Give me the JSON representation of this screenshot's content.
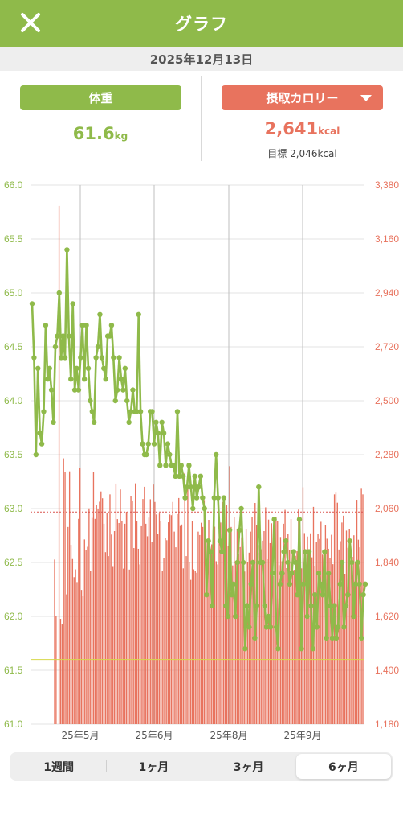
{
  "header": {
    "title": "グラフ",
    "close_icon": "close-icon"
  },
  "date": "2025年12月13日",
  "weight_panel": {
    "button_label": "体重",
    "value": "61.6",
    "unit": "kg",
    "color": "#8fba4a"
  },
  "calorie_panel": {
    "button_label": "摂取カロリー",
    "value": "2,641",
    "unit": "kcal",
    "target": "目標 2,046kcal",
    "color": "#e8735e"
  },
  "period_tabs": [
    {
      "label": "1週間",
      "active": false
    },
    {
      "label": "1ヶ月",
      "active": false
    },
    {
      "label": "3ヶ月",
      "active": false
    },
    {
      "label": "6ヶ月",
      "active": true
    }
  ],
  "chart_data": {
    "type": "bar",
    "x_labels": [
      "25年5月",
      "25年6月",
      "25年8月",
      "25年9月"
    ],
    "y_left": {
      "ticks": [
        "66.0",
        "65.5",
        "65.0",
        "64.5",
        "64.0",
        "63.5",
        "63.0",
        "62.5",
        "62.0",
        "61.5",
        "61.0"
      ],
      "range": [
        61.0,
        66.0
      ],
      "color": "#8fba4a"
    },
    "y_right": {
      "ticks": [
        "3,380",
        "3,160",
        "2,940",
        "2,720",
        "2,500",
        "2,280",
        "2,060",
        "1,840",
        "1,620",
        "1,400",
        "1,180"
      ],
      "range": [
        1180,
        3380
      ],
      "color": "#e8735e"
    },
    "calorie_target": 2046,
    "weight_target": 61.6,
    "series": [
      {
        "type": "bar",
        "color": "#e8735e",
        "values": [
          1852,
          1623,
          1180,
          3295,
          1610,
          1587,
          2265,
          2211,
          1710,
          1985,
          2212,
          1912,
          1854,
          1780,
          1812,
          1760,
          2018,
          2225,
          1728,
          1702,
          1934,
          1892,
          1904,
          2061,
          1804,
          2022,
          2210,
          2018,
          2075,
          2057,
          2088,
          2130,
          2102,
          1998,
          1882,
          2043,
          1866,
          2118,
          1954,
          1822,
          1968,
          2162,
          2017,
          2001,
          2138,
          2009,
          1815,
          1998,
          2047,
          2041,
          1811,
          2110,
          2093,
          1899,
          2163,
          2008,
          1896,
          1832,
          1988,
          2099,
          2149,
          1998,
          1947,
          2023,
          2098,
          1925,
          2158,
          2087,
          2036,
          1957,
          2040,
          2009,
          1807,
          1859,
          1941,
          1931,
          2004,
          2036,
          2033,
          2087,
          1966,
          1902,
          2037,
          2103,
          1989,
          1995,
          1816,
          2205,
          1866,
          2144,
          1840,
          1769,
          2010,
          1812,
          1807,
          1798,
          1966,
          1952,
          2002,
          1985,
          2095,
          1965,
          1922,
          2014,
          1859,
          1914,
          1971,
          1986,
          1845,
          1832,
          1970,
          2003,
          2087,
          1965,
          1831,
          2073,
          1906,
          2233,
          1985,
          1828,
          2025,
          1846,
          1975,
          1874,
          1903,
          1943,
          1789,
          1803,
          1978,
          1843,
          1880,
          1966,
          2026,
          1813,
          2083,
          1993,
          1880,
          1911,
          1894,
          1929,
          1968,
          2065,
          1853,
          2015,
          1919,
          2000,
          1785,
          1935,
          2025,
          2009,
          1829,
          1944,
          1845,
          1998,
          2055,
          1817,
          1958,
          1890,
          2017,
          1876,
          1810,
          1867,
          1886,
          2056,
          1967,
          1816,
          2147,
          1960,
          1804,
          1946,
          1893,
          1959,
          1861,
          2067,
          1825,
          1925,
          1955,
          1936,
          2006,
          1872,
          1843,
          1993,
          1937,
          1896,
          1857,
          1953,
          1833,
          2118,
          2125,
          2084,
          1893,
          1927,
          2003,
          2031,
          1794,
          1970,
          1900,
          1976,
          1889,
          1863,
          1951,
          1841,
          2096,
          1933,
          1902,
          2141,
          2118
        ]
      },
      {
        "type": "line",
        "color": "#8fba4a",
        "values": [
          64.9,
          64.4,
          63.5,
          64.3,
          63.7,
          63.6,
          63.9,
          64.7,
          64.2,
          64.3,
          64.1,
          63.8,
          64.5,
          64.6,
          65.0,
          64.4,
          64.6,
          64.4,
          65.4,
          64.6,
          64.2,
          64.9,
          64.1,
          64.3,
          64.1,
          64.4,
          64.7,
          64.2,
          64.7,
          64.3,
          64.0,
          63.9,
          63.8,
          64.4,
          64.5,
          64.8,
          64.4,
          64.3,
          64.2,
          64.6,
          64.6,
          64.7,
          64.4,
          64.0,
          64.1,
          64.4,
          64.2,
          64.1,
          64.3,
          64.0,
          63.8,
          63.9,
          64.1,
          63.9,
          63.9,
          64.8,
          63.9,
          63.6,
          63.5,
          63.5,
          63.6,
          63.9,
          63.9,
          63.6,
          63.8,
          63.7,
          63.4,
          63.8,
          63.7,
          63.4,
          63.6,
          63.5,
          63.4,
          63.4,
          63.3,
          63.9,
          63.3,
          63.4,
          63.3,
          63.1,
          63.2,
          63.4,
          63.2,
          63.0,
          63.3,
          63.1,
          63.2,
          63.3,
          63.1,
          63.0,
          62.2,
          62.7,
          62.6,
          62.1,
          63.1,
          63.5,
          63.1,
          62.7,
          62.6,
          63.1,
          62.1,
          62.0,
          62.8,
          62.2,
          62.3,
          62.0,
          62.5,
          62.8,
          63.0,
          62.5,
          61.7,
          62.1,
          61.9,
          62.3,
          62.5,
          61.8,
          62.1,
          63.2,
          62.5,
          62.5,
          62.1,
          61.9,
          62.0,
          61.9,
          62.4,
          62.9,
          61.9,
          61.7,
          62.3,
          62.4,
          62.6,
          62.7,
          62.5,
          62.3,
          62.4,
          62.6,
          62.5,
          62.2,
          62.9,
          61.7,
          62.3,
          62.6,
          62.0,
          62.6,
          62.1,
          61.7,
          62.2,
          61.9,
          62.4,
          62.3,
          62.2,
          62.6,
          61.8,
          62.4,
          62.1,
          61.8,
          62.1,
          61.8,
          61.9,
          62.3,
          62.5,
          61.9,
          62.1,
          62.2,
          62.7,
          62.5,
          62.0,
          62.3,
          62.5,
          62.3,
          61.8,
          62.2,
          62.3
        ]
      }
    ]
  }
}
